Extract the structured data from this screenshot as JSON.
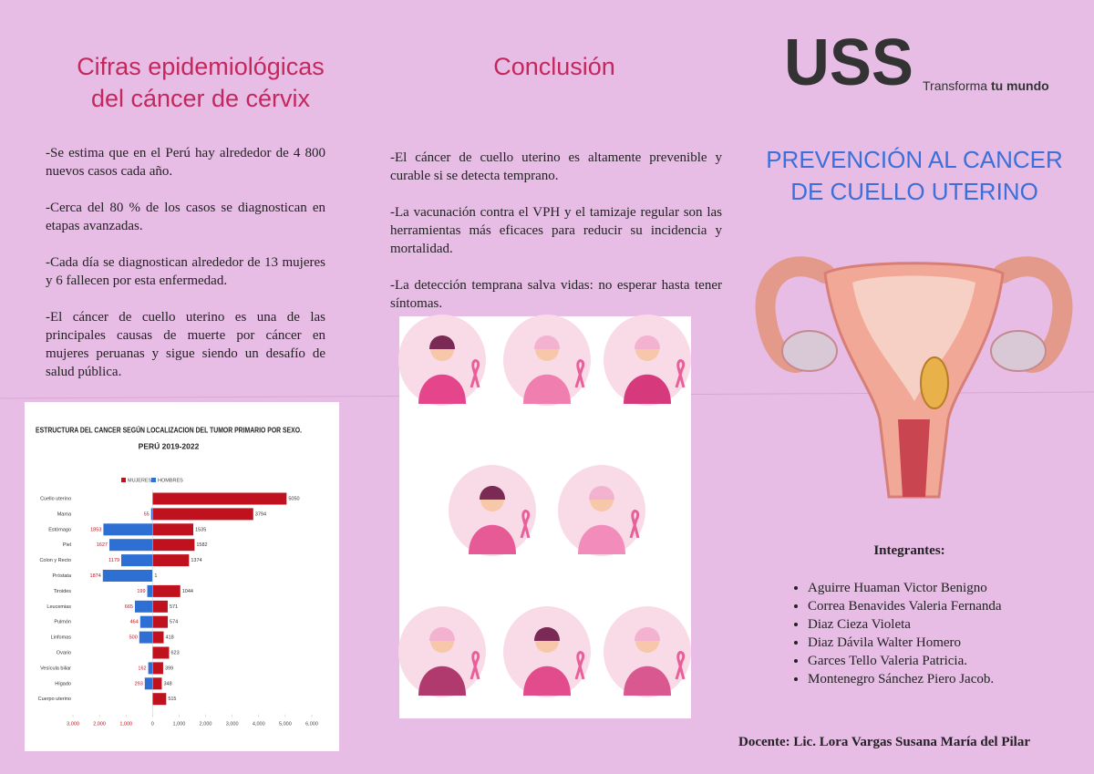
{
  "left": {
    "title": [
      "Cifras epidemiológicas",
      "del cáncer de cérvix"
    ],
    "paragraphs": [
      "-Se estima que en el Perú hay alrededor de 4 800 nuevos casos cada año.",
      "-Cerca del 80 % de los casos se diagnostican en etapas avanzadas.",
      "-Cada día se diagnostican alrededor de 13 mujeres y 6 fallecen por esta enfermedad.",
      "-El cáncer de cuello uterino es una de las principales causas de muerte por cáncer en mujeres peruanas y sigue siendo un desafío de salud pública."
    ]
  },
  "chart_data": {
    "type": "bar",
    "orientation": "horizontal",
    "title": "ESTRUCTURA DEL CANCER SEGÚN LOCALIZACION DEL TUMOR PRIMARIO POR SEXO.",
    "subtitle": "PERÚ 2019-2022",
    "categories": [
      "Cuello uterino",
      "Mama",
      "Estómago",
      "Piel",
      "Colon y Recto",
      "Próstata",
      "Tiroides",
      "Leucemias",
      "Pulmón",
      "Linfomas",
      "Ovario",
      "Vesícula biliar",
      "Hígado",
      "Cuerpo uterino"
    ],
    "series": [
      {
        "name": "MUJERES",
        "color": "#c0121e",
        "values": [
          5050,
          3794,
          1535,
          1582,
          1374,
          1,
          1044,
          571,
          574,
          418,
          623,
          399,
          348,
          515
        ]
      },
      {
        "name": "HOMBRES",
        "color": "#2e6fd3",
        "values": [
          null,
          -55,
          -1853,
          -1627,
          -1179,
          -1874,
          -199,
          -665,
          -464,
          -500,
          null,
          -162,
          -293,
          null
        ],
        "value_labels": [
          null,
          "55",
          "1853",
          "1627",
          "1179",
          "1874",
          "199",
          "665",
          "464",
          "500",
          null,
          "162",
          "293",
          null
        ]
      }
    ],
    "xlim": [
      -3000,
      6000
    ],
    "xticks": [
      {
        "value": -3000,
        "label": "3,000"
      },
      {
        "value": -2000,
        "label": "2,000"
      },
      {
        "value": -1000,
        "label": "1,000"
      },
      0,
      {
        "value": 1000,
        "label": "1,000"
      },
      {
        "value": 2000,
        "label": "2,000"
      },
      {
        "value": 3000,
        "label": "3,000"
      },
      {
        "value": 4000,
        "label": "4,000"
      },
      {
        "value": 5000,
        "label": "5,000"
      },
      {
        "value": 6000,
        "label": "6,000"
      }
    ]
  },
  "conclusion": {
    "title": "Conclusión",
    "paragraphs": [
      "-El cáncer de cuello uterino es altamente prevenible y curable si se detecta temprano.",
      "-La vacunación contra el VPH y el tamizaje regular son las herramientas más eficaces para reducir su incidencia y mortalidad.",
      "-La detección temprana salva vidas: no esperar hasta tener síntomas."
    ]
  },
  "logo": {
    "mark": "USS",
    "tagline": "Transforma",
    "tagline_bold": "tu mundo"
  },
  "title": [
    "PREVENCIÓN AL CANCER",
    "DE CUELLO UTERINO"
  ],
  "team": {
    "heading": "Integrantes:",
    "members": [
      "Aguirre Huaman Victor Benigno",
      "Correa Benavides Valeria Fernanda",
      "Diaz Cieza Violeta",
      "Diaz Dávila Walter Homero",
      "Garces Tello Valeria Patricia.",
      "Montenegro Sánchez Piero Jacob."
    ]
  },
  "teacher": "Docente: Lic. Lora Vargas Susana María del Pilar"
}
